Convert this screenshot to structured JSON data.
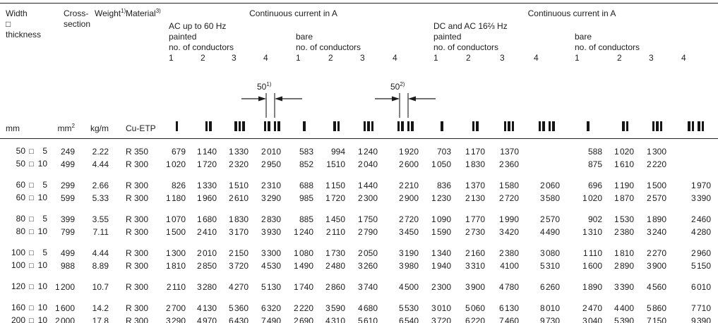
{
  "header": {
    "width_label_lines": [
      "Width",
      "□",
      "thickness"
    ],
    "cross_label_lines": [
      "Cross-",
      "section"
    ],
    "weight_label": {
      "base": "Weight",
      "sup": "1)"
    },
    "material_label": {
      "base": "Material",
      "sup": "3)"
    },
    "ac": {
      "title": "Continuous current in A",
      "frequency": "AC up to 60 Hz",
      "painted": "painted",
      "bare": "bare",
      "conductors": "no. of conductors",
      "numbers": [
        "1",
        "2",
        "3",
        "4"
      ]
    },
    "dc": {
      "title": "Continuous current in A",
      "frequency": "DC and AC 16⅔ Hz",
      "painted": "painted",
      "bare": "bare",
      "conductors": "no. of conductors",
      "numbers": [
        "1",
        "2",
        "3",
        "4"
      ]
    }
  },
  "diagrams": {
    "painted_gap": {
      "value": "50",
      "sup": "1)"
    },
    "bare_gap": {
      "value": "50",
      "sup": "2)"
    }
  },
  "units": {
    "width": "mm",
    "cross_base": "mm",
    "cross_sup": "2",
    "weight": "kg/m",
    "material": "Cu-ETP"
  },
  "size_separator": "□",
  "conductor_icons": [
    [
      1
    ],
    [
      2
    ],
    [
      3
    ],
    [
      2,
      2
    ],
    [
      1
    ],
    [
      2
    ],
    [
      3
    ],
    [
      2,
      2
    ],
    [
      1
    ],
    [
      2
    ],
    [
      3
    ],
    [
      2,
      2
    ],
    [
      1
    ],
    [
      2
    ],
    [
      3
    ],
    [
      2,
      2
    ]
  ],
  "table_rows": [
    {
      "size": {
        "w": "50",
        "t": "5"
      },
      "cross": "249",
      "weight": "2.22",
      "material": "R 350",
      "values": [
        "679",
        "1 140",
        "1 330",
        "2 010",
        "583",
        "994",
        "1 240",
        "1 920",
        "703",
        "1 170",
        "1370",
        "",
        "588",
        "1 020",
        "1 300",
        ""
      ],
      "gap_after": false
    },
    {
      "size": {
        "w": "50",
        "t": "10"
      },
      "cross": "499",
      "weight": "4.44",
      "material": "R 300",
      "values": [
        "1 020",
        "1 720",
        "2 320",
        "2 950",
        "852",
        "1510",
        "2 040",
        "2 600",
        "1 050",
        "1 830",
        "2 360",
        "",
        "875",
        "1 610",
        "2 220",
        ""
      ],
      "gap_after": true
    },
    {
      "size": {
        "w": "60",
        "t": "5"
      },
      "cross": "299",
      "weight": "2.66",
      "material": "R 300",
      "values": [
        "826",
        "1 330",
        "1 510",
        "2 310",
        "688",
        "1 150",
        "1 440",
        "2 210",
        "836",
        "1 370",
        "1 580",
        "2 060",
        "696",
        "1 190",
        "1 500",
        "1 970"
      ],
      "gap_after": false
    },
    {
      "size": {
        "w": "60",
        "t": "10"
      },
      "cross": "599",
      "weight": "5.33",
      "material": "R 300",
      "values": [
        "1 180",
        "1 960",
        "2 610",
        "3 290",
        "985",
        "1 720",
        "2 300",
        "2 900",
        "1 230",
        "2 130",
        "2 720",
        "3 580",
        "1 020",
        "1 870",
        "2 570",
        "3 390"
      ],
      "gap_after": true
    },
    {
      "size": {
        "w": "80",
        "t": "5"
      },
      "cross": "399",
      "weight": "3.55",
      "material": "R 300",
      "values": [
        "1 070",
        "1 680",
        "1 830",
        "2 830",
        "885",
        "1 450",
        "1 750",
        "2 720",
        "1 090",
        "1 770",
        "1 990",
        "2 570",
        "902",
        "1 530",
        "1 890",
        "2 460"
      ],
      "gap_after": false
    },
    {
      "size": {
        "w": "80",
        "t": "10"
      },
      "cross": "799",
      "weight": "7.11",
      "material": "R 300",
      "values": [
        "1 500",
        "2 410",
        "3 170",
        "3 930",
        "1 240",
        "2 110",
        "2 790",
        "3 450",
        "1 590",
        "2 730",
        "3 420",
        "4 490",
        "1 310",
        "2 380",
        "3 240",
        "4 280"
      ],
      "gap_after": true
    },
    {
      "size": {
        "w": "100",
        "t": "5"
      },
      "cross": "499",
      "weight": "4.44",
      "material": "R 300",
      "values": [
        "1 300",
        "2 010",
        "2 150",
        "3 300",
        "1 080",
        "1 730",
        "2 050",
        "3 190",
        "1 340",
        "2 160",
        "2 380",
        "3 080",
        "1 110",
        "1 810",
        "2 270",
        "2 960"
      ],
      "gap_after": false
    },
    {
      "size": {
        "w": "100",
        "t": "10"
      },
      "cross": "988",
      "weight": "8.89",
      "material": "R 300",
      "values": [
        "1 810",
        "2 850",
        "3 720",
        "4 530",
        "1 490",
        "2 480",
        "3 260",
        "3 980",
        "1 940",
        "3 310",
        "4100",
        "5 310",
        "1 600",
        "2 890",
        "3 900",
        "5 150"
      ],
      "gap_after": true
    },
    {
      "size": {
        "w": "120",
        "t": "10"
      },
      "cross": "1 200",
      "weight": "10.7",
      "material": "R 300",
      "values": [
        "2 110",
        "3 280",
        "4 270",
        "5 130",
        "1 740",
        "2 860",
        "3 740",
        "4 500",
        "2 300",
        "3 900",
        "4 780",
        "6 260",
        "1 890",
        "3 390",
        "4 560",
        "6 010"
      ],
      "gap_after": true
    },
    {
      "size": {
        "w": "160",
        "t": "10"
      },
      "cross": "1 600",
      "weight": "14.2",
      "material": "R 300",
      "values": [
        "2 700",
        "4 130",
        "5 360",
        "6 320",
        "2 220",
        "3 590",
        "4 680",
        "5 530",
        "3 010",
        "5 060",
        "6 130",
        "8 010",
        "2 470",
        "4 400",
        "5 860",
        "7 710"
      ],
      "gap_after": false
    },
    {
      "size": {
        "w": "200",
        "t": "10"
      },
      "cross": "2 000",
      "weight": "17.8",
      "material": "R 300",
      "values": [
        "3 290",
        "4 970",
        "6 430",
        "7 490",
        "2 690",
        "4 310",
        "5 610",
        "6 540",
        "3 720",
        "6 220",
        "7 460",
        "9 730",
        "3 040",
        "5 390",
        "7 150",
        "9 390"
      ],
      "gap_after": false
    }
  ]
}
